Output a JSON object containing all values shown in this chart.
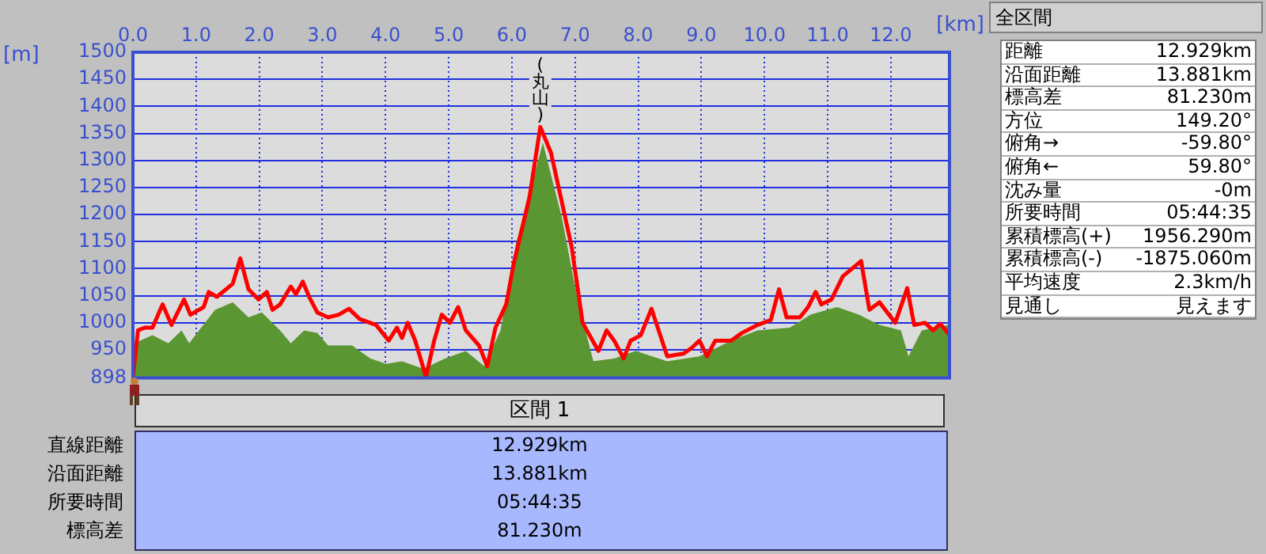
{
  "chart_data": [
    {
      "type": "line",
      "xlabel": "[km]",
      "ylabel": "[m]",
      "xlim": [
        0,
        12.929
      ],
      "xticks": [
        {
          "value": 0,
          "label": "0.0"
        },
        {
          "value": 1,
          "label": "1.0"
        },
        {
          "value": 2,
          "label": "2.0"
        },
        {
          "value": 3,
          "label": "3.0"
        },
        {
          "value": 4,
          "label": "4.0"
        },
        {
          "value": 5,
          "label": "5.0"
        },
        {
          "value": 6,
          "label": "6.0"
        },
        {
          "value": 7,
          "label": "7.0"
        },
        {
          "value": 8,
          "label": "8.0"
        },
        {
          "value": 9,
          "label": "9.0"
        },
        {
          "value": 10,
          "label": "10.0"
        },
        {
          "value": 11,
          "label": "11.0"
        },
        {
          "value": 12,
          "label": "12.0"
        }
      ],
      "ylim": [
        898,
        1500
      ],
      "yticks": [
        898,
        950,
        1000,
        1050,
        1100,
        1150,
        1200,
        1250,
        1300,
        1350,
        1400,
        1450,
        1500
      ],
      "grid": true,
      "annotations": [
        "(丸山)"
      ],
      "series": [
        {
          "type": "line",
          "color": "#ff0000",
          "x": [
            0,
            0.08,
            0.19,
            0.31,
            0.47,
            0.61,
            0.81,
            0.91,
            1.12,
            1.2,
            1.33,
            1.58,
            1.7,
            1.83,
            1.99,
            2.12,
            2.21,
            2.33,
            2.5,
            2.58,
            2.69,
            2.79,
            2.92,
            3.09,
            3.26,
            3.42,
            3.59,
            3.85,
            4.05,
            4.18,
            4.26,
            4.35,
            4.47,
            4.64,
            4.77,
            4.89,
            5.02,
            5.15,
            5.27,
            5.48,
            5.61,
            5.74,
            5.91,
            6.03,
            6.28,
            6.45,
            6.62,
            6.79,
            6.95,
            7.12,
            7.37,
            7.5,
            7.62,
            7.77,
            7.88,
            8.04,
            8.21,
            8.46,
            8.72,
            8.84,
            8.97,
            9.09,
            9.22,
            9.47,
            9.64,
            9.89,
            10.1,
            10.23,
            10.35,
            10.56,
            10.69,
            10.81,
            10.9,
            11.06,
            11.24,
            11.53,
            11.66,
            11.82,
            12.07,
            12.26,
            12.37,
            12.54,
            12.67,
            12.78,
            12.92
          ],
          "values": [
            900,
            986,
            991,
            991,
            1034,
            996,
            1043,
            1015,
            1029,
            1057,
            1048,
            1072,
            1119,
            1062,
            1043,
            1057,
            1024,
            1034,
            1067,
            1053,
            1076,
            1048,
            1019,
            1010,
            1015,
            1026,
            1007,
            996,
            967,
            991,
            972,
            1000,
            967,
            900,
            967,
            1015,
            1000,
            1029,
            986,
            958,
            920,
            991,
            1034,
            1110,
            1233,
            1362,
            1314,
            1224,
            1138,
            1000,
            948,
            986,
            967,
            934,
            967,
            977,
            1026,
            938,
            943,
            953,
            967,
            938,
            967,
            967,
            981,
            996,
            1005,
            1062,
            1010,
            1010,
            1029,
            1057,
            1034,
            1043,
            1086,
            1114,
            1024,
            1038,
            1000,
            1064,
            996,
            1000,
            986,
            998,
            979
          ]
        },
        {
          "type": "area",
          "color": "#5a9632",
          "x": [
            0,
            0.02,
            0.31,
            0.56,
            0.77,
            0.89,
            1.3,
            1.58,
            1.83,
            2.04,
            2.33,
            2.5,
            2.71,
            2.92,
            3.09,
            3.47,
            3.76,
            4.01,
            4.26,
            4.6,
            4.94,
            5.27,
            5.56,
            5.82,
            6.07,
            6.49,
            6.79,
            7.04,
            7.29,
            7.62,
            7.96,
            8.46,
            8.97,
            9.47,
            9.89,
            10.4,
            10.73,
            11.15,
            11.49,
            11.82,
            12.16,
            12.28,
            12.49,
            12.92
          ],
          "values": [
            900,
            962,
            977,
            962,
            986,
            962,
            1024,
            1038,
            1010,
            1019,
            986,
            962,
            986,
            981,
            958,
            958,
            934,
            924,
            929,
            915,
            934,
            948,
            920,
            986,
            1148,
            1333,
            1195,
            1043,
            929,
            934,
            948,
            929,
            938,
            967,
            986,
            991,
            1015,
            1029,
            1015,
            996,
            986,
            938,
            986,
            996
          ]
        }
      ]
    },
    {
      "type": "other",
      "title": "全区間",
      "annotations": [
        "距離",
        "12.929km",
        "沿面距離",
        "13.881km",
        "標高差",
        "81.230m",
        "方位",
        "149.20°",
        "俯角→",
        "-59.80°",
        "俯角←",
        "59.80°",
        "沈み量",
        "-0m",
        "所要時間",
        "05:44:35",
        "累積標高(+)",
        "1956.290m",
        "累積標高(-)",
        "-1875.060m",
        "平均速度",
        "2.3km/h",
        "見通し",
        "見えます"
      ]
    },
    {
      "type": "other",
      "title": "区間 1",
      "annotations": [
        "直線距離",
        "12.929km",
        "沿面距離",
        "13.881km",
        "所要時間",
        "05:44:35",
        "標高差",
        "81.230m"
      ]
    }
  ]
}
